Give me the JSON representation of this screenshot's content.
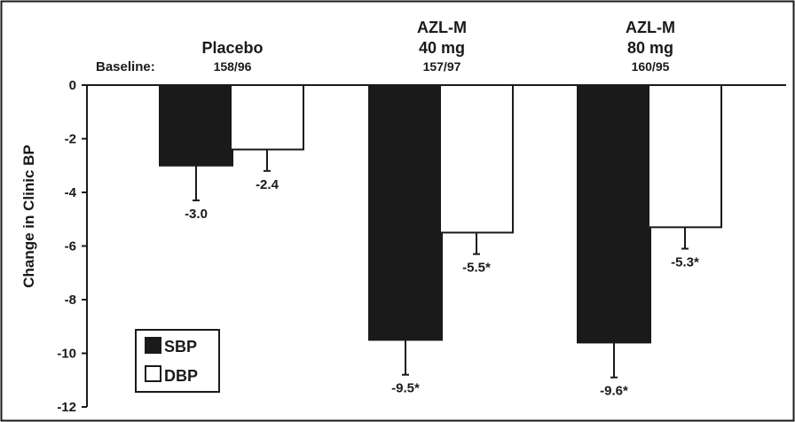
{
  "chart_data": {
    "type": "bar",
    "title": "",
    "xlabel": "",
    "ylabel": "Change in Clinic BP",
    "ylim": [
      -12,
      0
    ],
    "yticks": [
      "0",
      "-2",
      "-4",
      "-6",
      "-8",
      "-10",
      "-12"
    ],
    "grid": false,
    "legend": {
      "position": "bottom-left"
    },
    "baseline_label": "Baseline:",
    "categories": [
      {
        "name_lines": [
          "Placebo"
        ],
        "baseline": "158/96"
      },
      {
        "name_lines": [
          "AZL-M",
          "40 mg"
        ],
        "baseline": "157/97"
      },
      {
        "name_lines": [
          "AZL-M",
          "80 mg"
        ],
        "baseline": "160/95"
      }
    ],
    "series": [
      {
        "name": "SBP",
        "color": "#1a1a1a",
        "values": [
          -3.0,
          -9.5,
          -9.6
        ],
        "error": [
          1.3,
          1.3,
          1.3
        ],
        "labels": [
          "-3.0",
          "-9.5*",
          "-9.6*"
        ]
      },
      {
        "name": "DBP",
        "color": "#ffffff",
        "values": [
          -2.4,
          -5.5,
          -5.3
        ],
        "error": [
          0.8,
          0.8,
          0.8
        ],
        "labels": [
          "-2.4",
          "-5.5*",
          "-5.3*"
        ]
      }
    ]
  }
}
